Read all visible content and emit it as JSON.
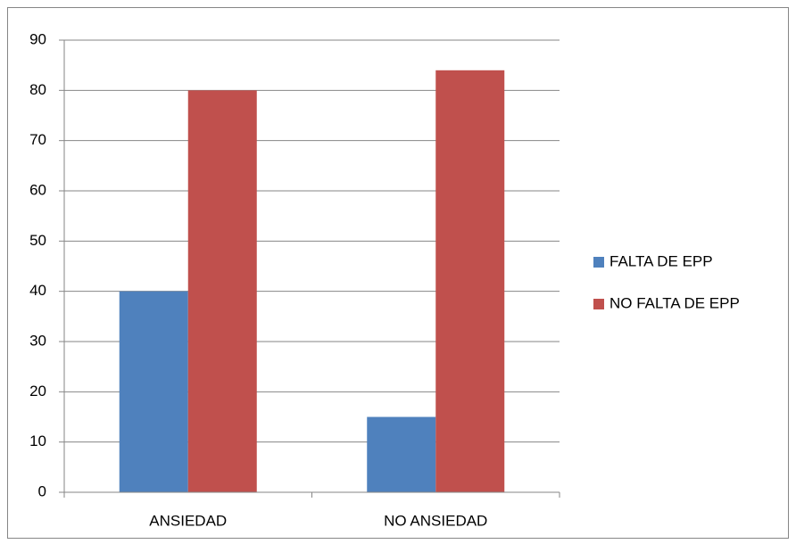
{
  "chart_data": {
    "type": "bar",
    "categories": [
      "ANSIEDAD",
      "NO ANSIEDAD"
    ],
    "series": [
      {
        "name": "FALTA DE EPP",
        "color": "#4f81bd",
        "values": [
          40,
          15
        ]
      },
      {
        "name": "NO FALTA DE EPP",
        "color": "#c0504d",
        "values": [
          80,
          84
        ]
      }
    ],
    "ylim": [
      0,
      90
    ],
    "yticks": [
      0,
      10,
      20,
      30,
      40,
      50,
      60,
      70,
      80,
      90
    ],
    "grid": true,
    "legend": "right"
  }
}
